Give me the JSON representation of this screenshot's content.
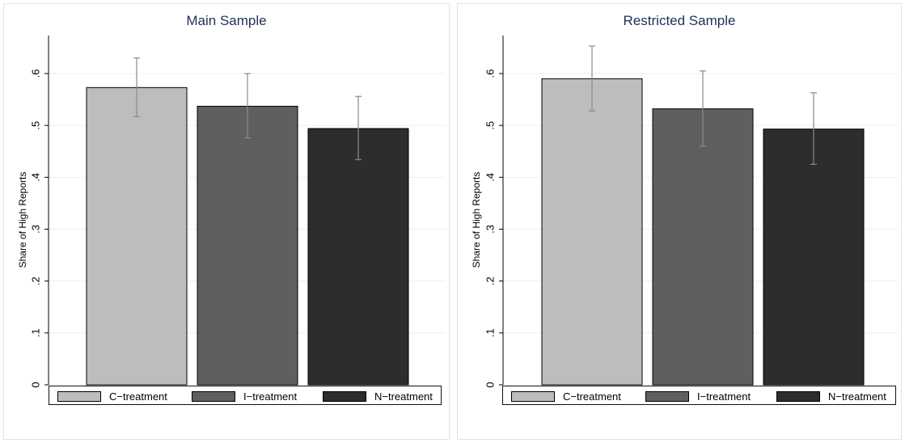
{
  "chart_data": [
    {
      "type": "bar",
      "title": "Main Sample",
      "xlabel": "",
      "ylabel": "Share of High Reports",
      "ylim": [
        0,
        0.68
      ],
      "yticks": [
        0,
        0.1,
        0.2,
        0.3,
        0.4,
        0.5,
        0.6
      ],
      "ytick_labels": [
        "0",
        ".1",
        ".2",
        ".3",
        ".4",
        ".5",
        ".6"
      ],
      "grid": true,
      "legend_position": "bottom",
      "error_bars": true,
      "series": [
        {
          "name": "C−treatment",
          "value": 0.573,
          "ci_low": 0.517,
          "ci_high": 0.63,
          "color": "#bdbdbd"
        },
        {
          "name": "I−treatment",
          "value": 0.537,
          "ci_low": 0.476,
          "ci_high": 0.6,
          "color": "#5f5f5f"
        },
        {
          "name": "N−treatment",
          "value": 0.494,
          "ci_low": 0.434,
          "ci_high": 0.556,
          "color": "#2d2d2d"
        }
      ]
    },
    {
      "type": "bar",
      "title": "Restricted Sample",
      "xlabel": "",
      "ylabel": "Share of High Reports",
      "ylim": [
        0,
        0.68
      ],
      "yticks": [
        0,
        0.1,
        0.2,
        0.3,
        0.4,
        0.5,
        0.6
      ],
      "ytick_labels": [
        "0",
        ".1",
        ".2",
        ".3",
        ".4",
        ".5",
        ".6"
      ],
      "grid": true,
      "legend_position": "bottom",
      "error_bars": true,
      "series": [
        {
          "name": "C−treatment",
          "value": 0.59,
          "ci_low": 0.528,
          "ci_high": 0.653,
          "color": "#bdbdbd"
        },
        {
          "name": "I−treatment",
          "value": 0.532,
          "ci_low": 0.46,
          "ci_high": 0.605,
          "color": "#5f5f5f"
        },
        {
          "name": "N−treatment",
          "value": 0.493,
          "ci_low": 0.425,
          "ci_high": 0.563,
          "color": "#2d2d2d"
        }
      ]
    }
  ]
}
